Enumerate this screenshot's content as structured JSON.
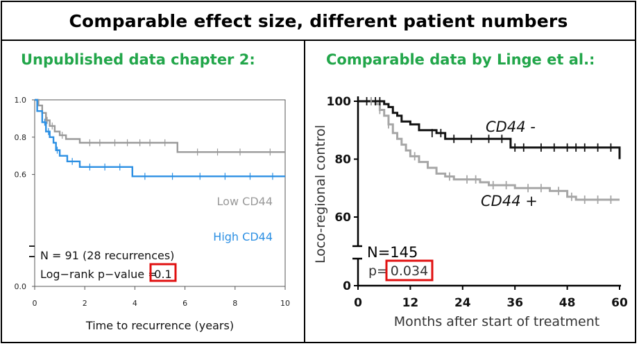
{
  "header": {
    "title": "Comparable effect size, different patient numbers"
  },
  "panels": [
    {
      "heading": "Unpublished data chapter 2:",
      "chart_data": {
        "type": "line",
        "xlabel": "Time to recurrence (years)",
        "ylabel": "",
        "xlim": [
          0,
          10
        ],
        "ylim": [
          0,
          1
        ],
        "xticks": [
          "0",
          "2",
          "4",
          "6",
          "8",
          "10"
        ],
        "yticks": [
          "0.0",
          "0.6",
          "0.8",
          "1.0"
        ],
        "annotations": {
          "n_text": "N = 91 (28 recurrences)",
          "p_text": "Log−rank p−value = ",
          "p_value": "0.1"
        },
        "colors": {
          "low": "#999999",
          "high": "#2b8fe3",
          "highlight_box": "#e01010"
        },
        "series": [
          {
            "name": "Low CD44",
            "x": [
              0,
              0.15,
              0.3,
              0.45,
              0.6,
              0.8,
              1.0,
              1.25,
              1.8,
              3.0,
              5.7,
              7.0,
              10
            ],
            "y": [
              1.0,
              0.97,
              0.93,
              0.89,
              0.86,
              0.83,
              0.81,
              0.79,
              0.77,
              0.77,
              0.72,
              0.72,
              0.72
            ]
          },
          {
            "name": "High CD44",
            "x": [
              0,
              0.1,
              0.3,
              0.45,
              0.6,
              0.75,
              0.85,
              1.0,
              1.3,
              1.8,
              2.5,
              3.9,
              5.0,
              10
            ],
            "y": [
              1.0,
              0.94,
              0.88,
              0.83,
              0.8,
              0.77,
              0.73,
              0.7,
              0.67,
              0.64,
              0.64,
              0.59,
              0.59,
              0.59
            ]
          }
        ]
      }
    },
    {
      "heading": "Comparable data by Linge et al.:",
      "chart_data": {
        "type": "line",
        "xlabel": "Months after start of treatment",
        "ylabel": "Loco-regional control",
        "xlim": [
          0,
          60
        ],
        "ylim": [
          0,
          100
        ],
        "xticks": [
          "0",
          "12",
          "24",
          "36",
          "48",
          "60"
        ],
        "yticks": [
          "0",
          "60",
          "80",
          "100"
        ],
        "annotations": {
          "n_text": "N=145",
          "p_text": "p=",
          "p_value": "0.034"
        },
        "colors": {
          "negative": "#111111",
          "positive": "#a6a6a6",
          "highlight_box": "#e01010"
        },
        "series": [
          {
            "name": "CD44 -",
            "x": [
              0,
              5,
              6,
              7,
              8,
              9,
              10,
              12,
              14,
              18,
              20,
              24,
              35,
              40,
              48,
              59,
              60
            ],
            "y": [
              100,
              100,
              99,
              98,
              96,
              95,
              93,
              92,
              90,
              89,
              87,
              87,
              84,
              84,
              84,
              84,
              80
            ]
          },
          {
            "name": "CD44 +",
            "x": [
              0,
              4,
              5,
              6,
              7,
              8,
              9,
              10,
              11,
              12,
              14,
              16,
              18,
              20,
              22,
              24,
              28,
              30,
              36,
              40,
              44,
              48,
              50,
              60
            ],
            "y": [
              100,
              99,
              97,
              95,
              92,
              89,
              87,
              85,
              83,
              81,
              79,
              77,
              75,
              74,
              73,
              73,
              72,
              71,
              70,
              70,
              69,
              67,
              66,
              66
            ]
          }
        ]
      }
    }
  ]
}
